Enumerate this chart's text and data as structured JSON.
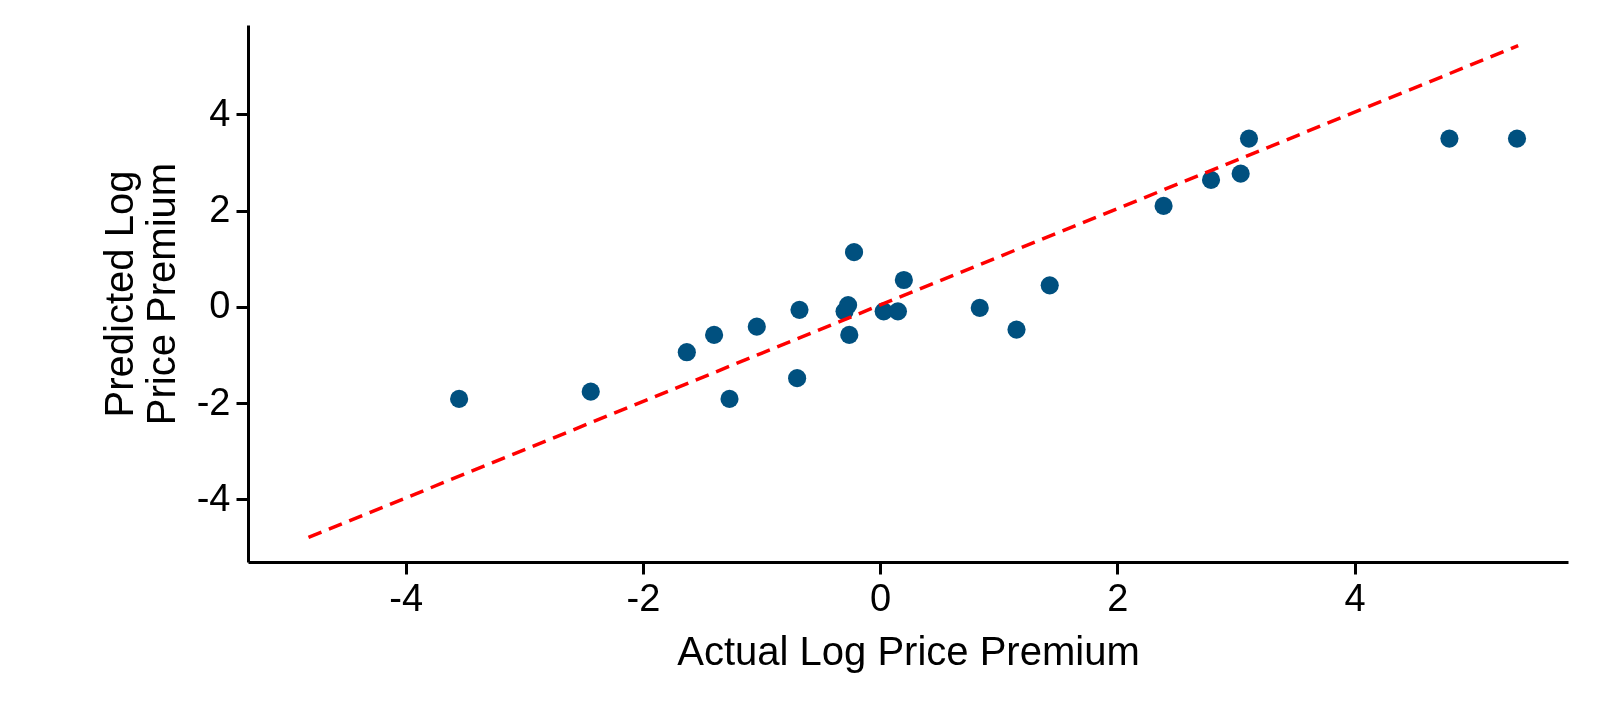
{
  "chart_data": {
    "type": "scatter",
    "xlabel": "Actual Log Price Premium",
    "ylabel": "Predicted Log Price Premium",
    "xlim": [
      -5.33,
      5.8
    ],
    "ylim": [
      -5.3,
      5.86
    ],
    "xticks": [
      -4,
      -2,
      0,
      2,
      4
    ],
    "yticks": [
      -4,
      -2,
      0,
      2,
      4
    ],
    "grid": false,
    "marker": "circle",
    "series": [
      {
        "color": "#00507f",
        "x": [
          -3.55,
          -2.44,
          -1.63,
          -1.4,
          -1.27,
          -1.04,
          -0.7,
          -0.68,
          -0.3,
          -0.27,
          -0.26,
          -0.22,
          0.03,
          0.15,
          0.2,
          0.84,
          1.15,
          1.43,
          2.39,
          2.79,
          3.04,
          3.11,
          4.8,
          5.37
        ],
        "values": [
          -1.91,
          -1.76,
          -0.94,
          -0.58,
          -1.91,
          -0.41,
          -1.48,
          -0.06,
          -0.09,
          0.04,
          -0.58,
          1.14,
          -0.09,
          -0.09,
          0.56,
          -0.02,
          -0.47,
          0.45,
          2.1,
          2.64,
          2.77,
          3.5,
          3.5,
          3.5
        ]
      },
      {
        "type": "line",
        "color": "#ff0000",
        "line_style": "dashed",
        "marker": "none",
        "x": [
          -4.82,
          5.38
        ],
        "values": [
          -4.79,
          5.43
        ]
      }
    ]
  }
}
